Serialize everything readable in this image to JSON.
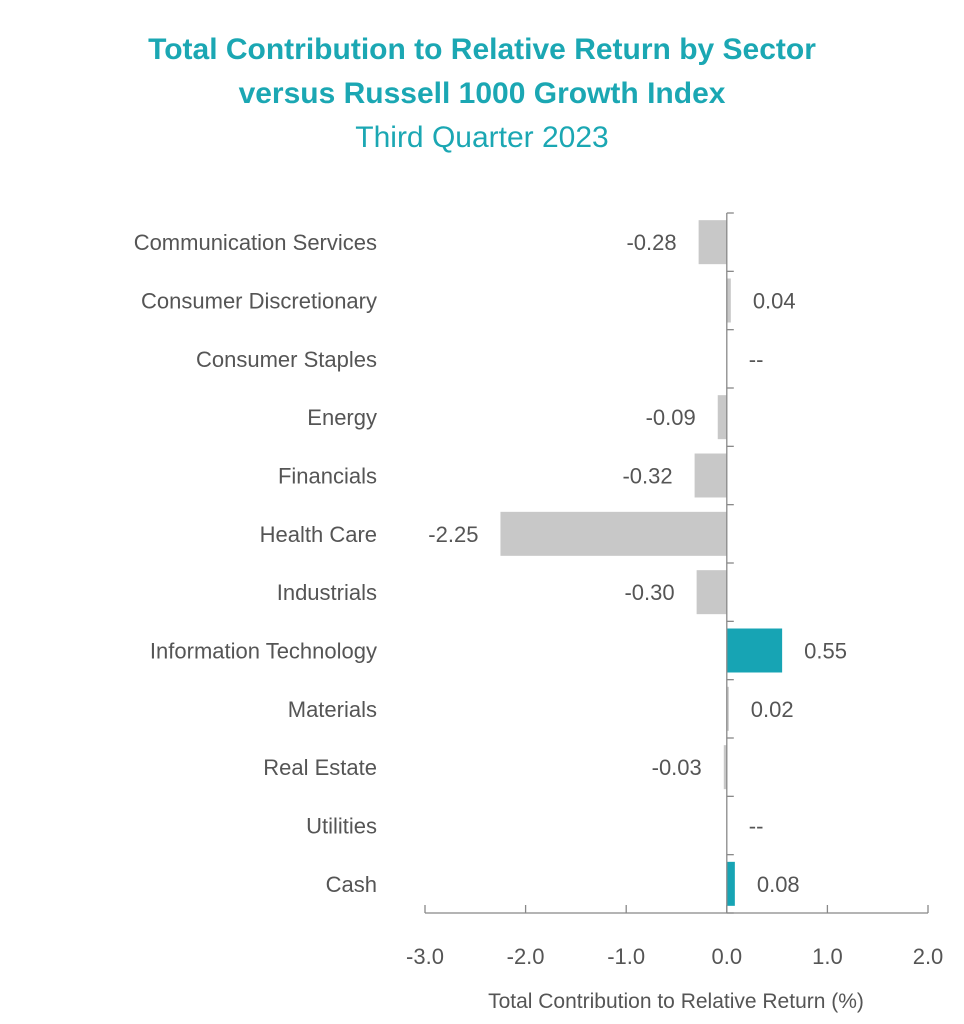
{
  "title_lines": [
    "Total Contribution to Relative Return by Sector",
    "versus Russell 1000 Growth Index"
  ],
  "subtitle": "Third Quarter 2023",
  "colors": {
    "title": "#1ba7b3",
    "negative_bar": "#c8c8c8",
    "positive_bar": "#17a4b4",
    "text": "#555555",
    "axis": "#888888"
  },
  "chart_data": {
    "type": "bar",
    "orientation": "horizontal",
    "categories": [
      "Communication Services",
      "Consumer Discretionary",
      "Consumer Staples",
      "Energy",
      "Financials",
      "Health Care",
      "Industrials",
      "Information Technology",
      "Materials",
      "Real Estate",
      "Utilities",
      "Cash"
    ],
    "values": [
      -0.28,
      0.04,
      null,
      -0.09,
      -0.32,
      -2.25,
      -0.3,
      0.55,
      0.02,
      -0.03,
      null,
      0.08
    ],
    "value_labels": [
      "-0.28",
      "0.04",
      "--",
      "-0.09",
      "-0.32",
      "-2.25",
      "-0.30",
      "0.55",
      "0.02",
      "-0.03",
      "--",
      "0.08"
    ],
    "bar_colors": [
      "gray",
      "gray",
      "gray",
      "gray",
      "gray",
      "gray",
      "gray",
      "teal",
      "gray",
      "gray",
      "gray",
      "teal"
    ],
    "xlim": [
      -3.0,
      2.0
    ],
    "xticks": [
      -3.0,
      -2.0,
      -1.0,
      0.0,
      1.0,
      2.0
    ],
    "xtick_labels": [
      "-3.0",
      "-2.0",
      "-1.0",
      "0.0",
      "1.0",
      "2.0"
    ],
    "xlabel": "Total Contribution to Relative Return (%)",
    "ylabel": "",
    "grid": false,
    "legend": "none"
  }
}
